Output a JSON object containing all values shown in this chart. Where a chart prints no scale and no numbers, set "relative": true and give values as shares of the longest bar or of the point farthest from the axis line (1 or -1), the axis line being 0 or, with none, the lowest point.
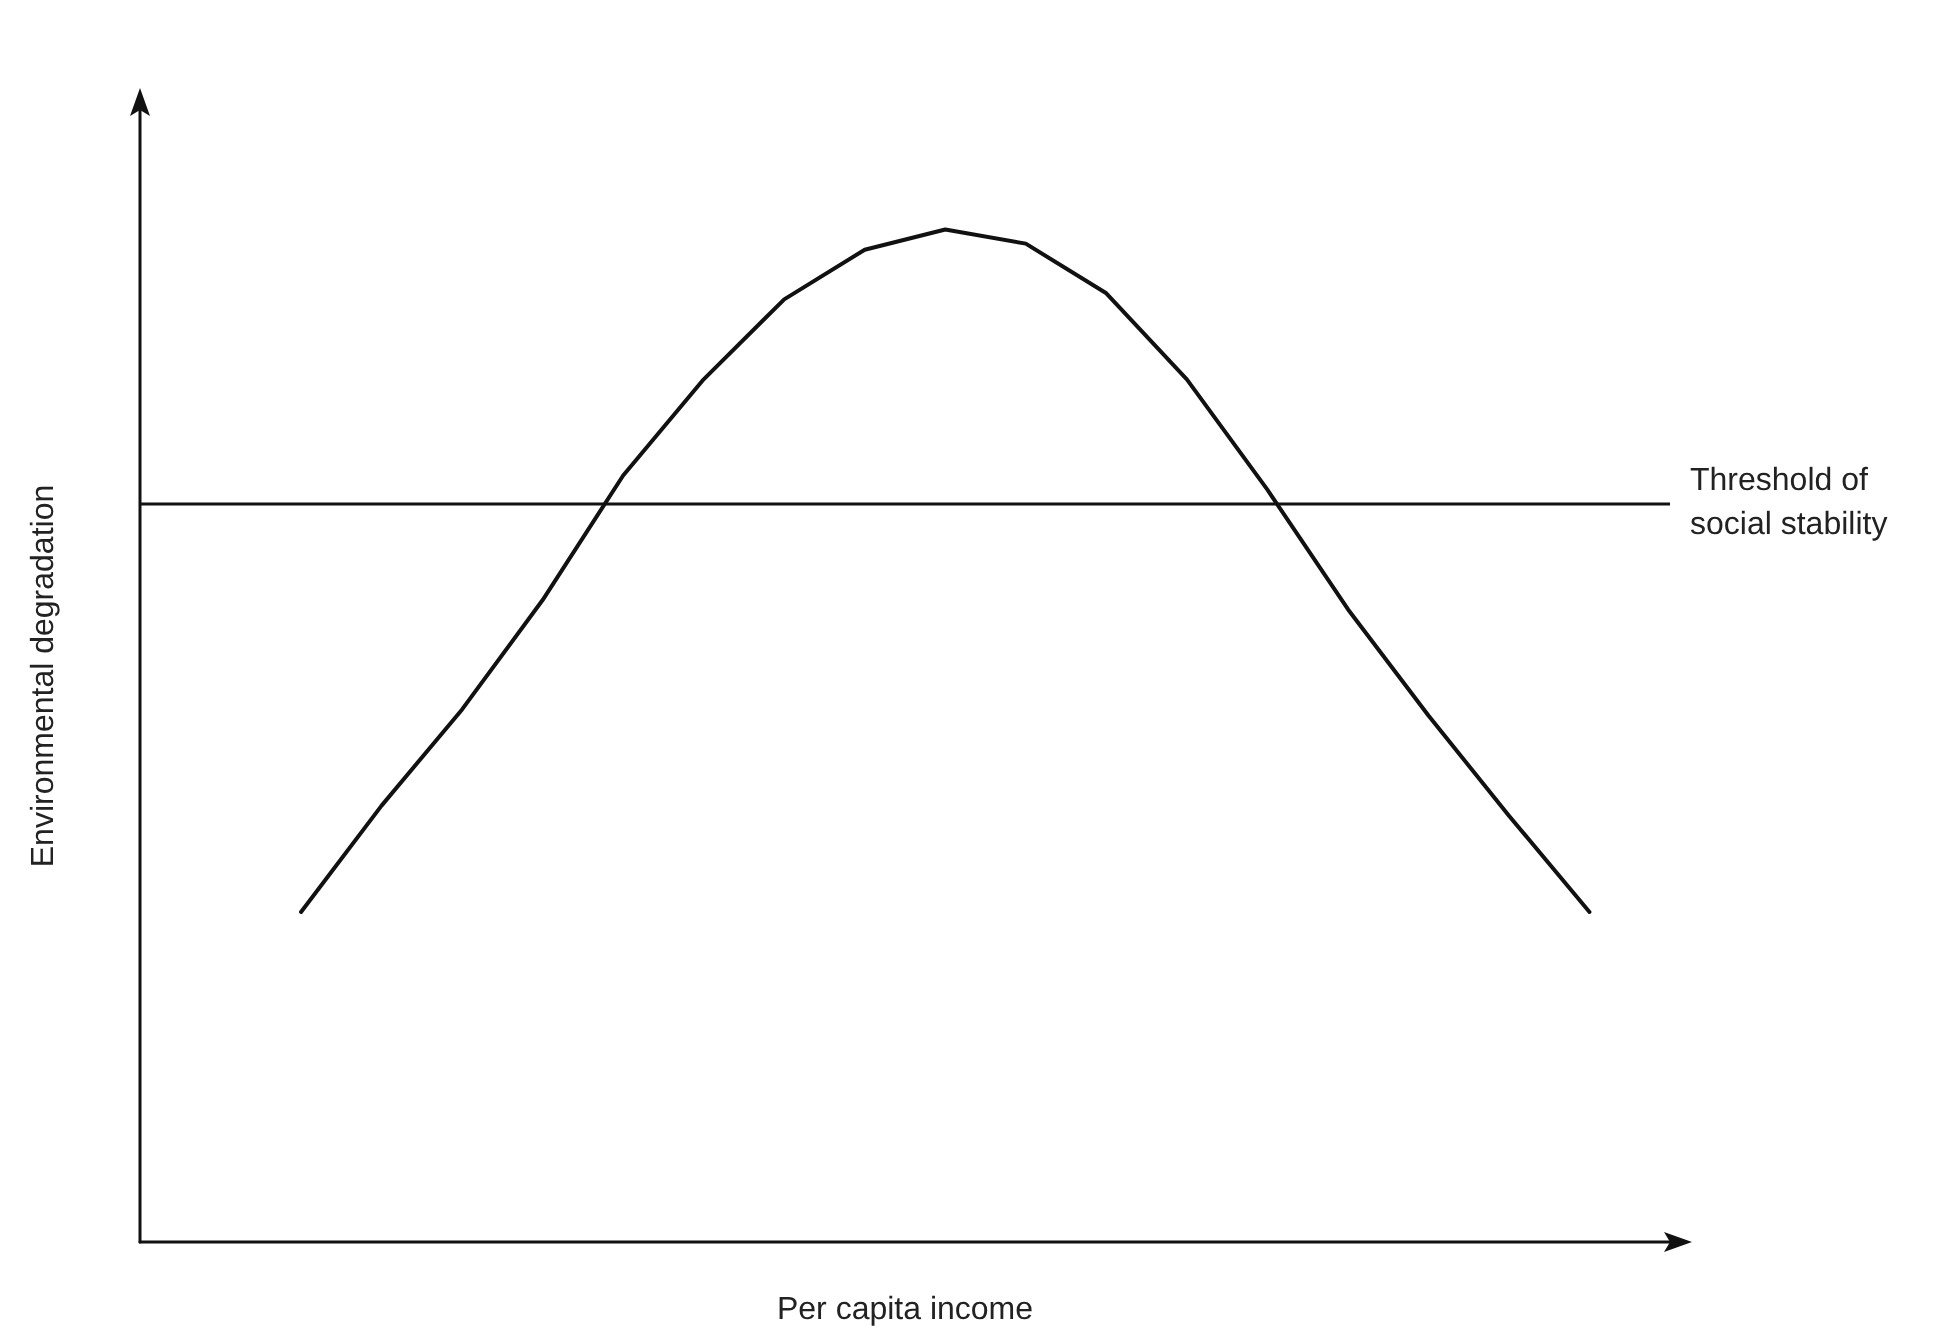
{
  "chart_data": {
    "type": "line",
    "relative": true,
    "xlabel": "Per capita income",
    "ylabel": "Environmental degradation",
    "color": "#111111",
    "marker": "none",
    "line_style": "solid",
    "categories": [
      null,
      null,
      null,
      null,
      null,
      null,
      null,
      null,
      null,
      null,
      null,
      null,
      null,
      null,
      null,
      null,
      null,
      null,
      null,
      null
    ],
    "values": [
      null,
      null,
      0.326,
      0.431,
      0.526,
      0.634,
      0.757,
      0.852,
      0.931,
      0.98,
      1,
      0.986,
      0.937,
      0.852,
      0.743,
      0.625,
      0.52,
      0.421,
      0.326,
      null
    ],
    "ref_lines": [
      {
        "axis": "y",
        "value": 0.727,
        "label": "Threshold of social stability",
        "color": "#111111"
      }
    ]
  }
}
